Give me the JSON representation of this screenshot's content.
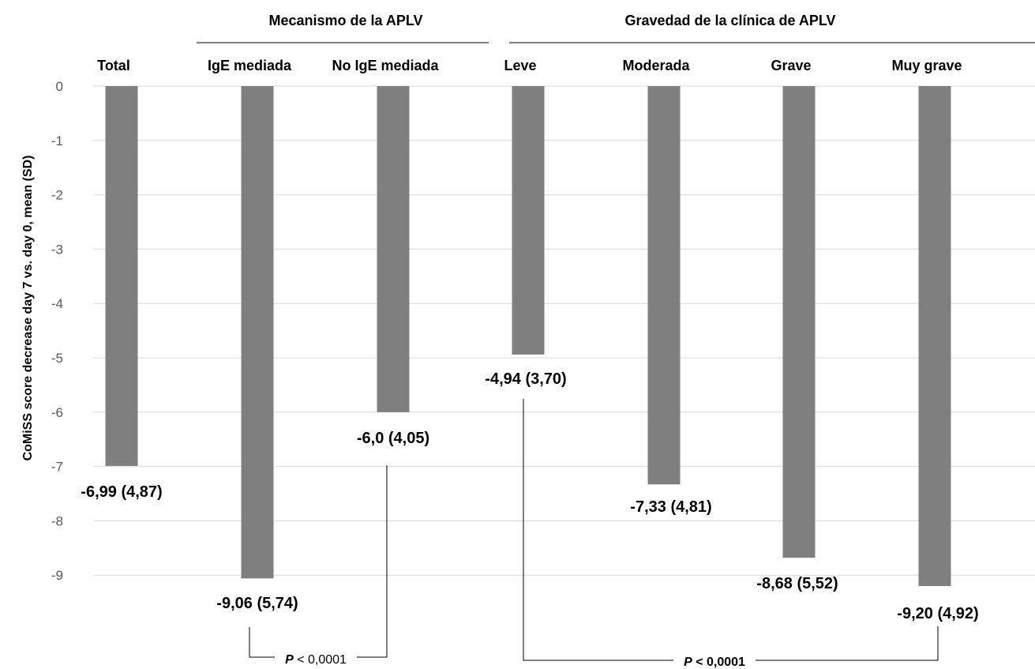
{
  "chart_data": {
    "type": "bar",
    "ylabel": "CoMiSS score decrease day 7 vs. day 0, mean (SD)",
    "ylim": [
      -9.5,
      0
    ],
    "yticks": [
      0,
      -1,
      -2,
      -3,
      -4,
      -5,
      -6,
      -7,
      -8,
      -9
    ],
    "grid": true,
    "categories": [
      "Total",
      "IgE mediada",
      "No IgE mediada",
      "Leve",
      "Moderada",
      "Grave",
      "Muy grave"
    ],
    "values": [
      -6.99,
      -9.06,
      -6.0,
      -4.94,
      -7.33,
      -8.68,
      -9.2
    ],
    "value_labels": [
      "-6,99 (4,87)",
      "-9,06 (5,74)",
      "-6,0 (4,05)",
      "-4,94 (3,70)",
      "-7,33 (4,81)",
      "-8,68 (5,52)",
      "-9,20 (4,92)"
    ],
    "groups": [
      {
        "label": "Mecanismo de la APLV",
        "categories": [
          1,
          2
        ]
      },
      {
        "label": "Gravedad de la clínica de APLV",
        "categories": [
          3,
          4,
          5,
          6
        ]
      }
    ],
    "comparisons": [
      {
        "from": 1,
        "to": 2,
        "p_symbol": "P",
        "p_text": " < 0,0001",
        "bold": false
      },
      {
        "from": 3,
        "to": 6,
        "p_symbol": "P",
        "p_text": " < 0,0001",
        "bold": true
      }
    ]
  }
}
